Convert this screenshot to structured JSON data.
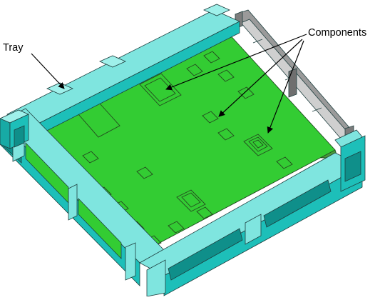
{
  "figure": {
    "labels": {
      "tray": "Tray",
      "components": "Components"
    },
    "colors": {
      "tray_top": "#7FE5DF",
      "tray_side": "#1DBFB9",
      "tray_dark": "#0F8F8A",
      "board": "#33CC33",
      "board_edge": "#1E7A1E",
      "grey_rail": "#8C8C8C",
      "pcb_side": "#4A9A3A"
    },
    "icons": {
      "arrowhead": "arrowhead-icon"
    }
  }
}
